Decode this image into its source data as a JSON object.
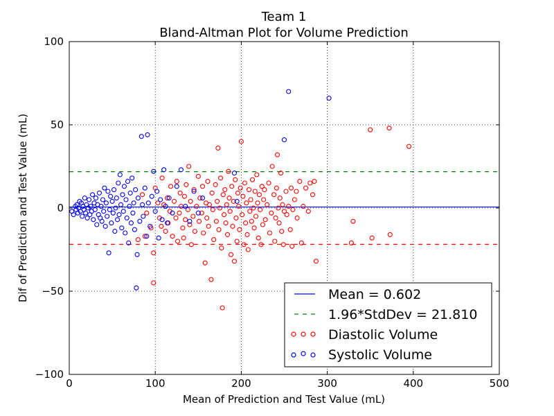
{
  "chart_data": {
    "type": "scatter",
    "title": "Team 1",
    "subtitle": "Bland-Altman Plot for Volume Prediction",
    "xlabel": "Mean of Prediction and Test Value (mL)",
    "ylabel": "Dif of Prediction and Test Value (mL)",
    "xlim": [
      0,
      500
    ],
    "ylim": [
      -100,
      100
    ],
    "x_ticks": [
      0,
      100,
      200,
      300,
      400,
      500
    ],
    "y_ticks": [
      -100,
      -50,
      0,
      50,
      100
    ],
    "x_tick_labels": [
      "0",
      "100",
      "200",
      "300",
      "400",
      "500"
    ],
    "y_tick_labels": [
      "−100",
      "−50",
      "0",
      "50",
      "100"
    ],
    "grid": true,
    "grid_style": "dotted",
    "legend_position": "lower-right",
    "mean": 0.602,
    "limit": 21.81,
    "reference_lines": [
      {
        "name": "Mean = 0.602",
        "type": "solid",
        "color": "#0000ff",
        "values": [
          0.602
        ]
      },
      {
        "name": "1.96*StdDev = 21.810",
        "type": "dashed",
        "color": "#008000",
        "values": [
          21.81
        ]
      },
      {
        "type": "dashed",
        "color": "#ff0000",
        "values": [
          -21.81
        ]
      }
    ],
    "series": [
      {
        "name": "Diastolic Volume",
        "color": "#ff0000",
        "marker": "open-circle",
        "points": [
          [
            80,
            -19
          ],
          [
            85,
            8
          ],
          [
            88,
            -17
          ],
          [
            90,
            -3
          ],
          [
            95,
            -12
          ],
          [
            98,
            -27
          ],
          [
            98,
            -45
          ],
          [
            100,
            12
          ],
          [
            103,
            3
          ],
          [
            105,
            -6
          ],
          [
            107,
            -11
          ],
          [
            108,
            18
          ],
          [
            110,
            2
          ],
          [
            112,
            -14
          ],
          [
            114,
            6
          ],
          [
            115,
            -9
          ],
          [
            117,
            -2
          ],
          [
            118,
            13
          ],
          [
            120,
            -17
          ],
          [
            122,
            4
          ],
          [
            124,
            -6
          ],
          [
            125,
            16
          ],
          [
            126,
            -20
          ],
          [
            128,
            -3
          ],
          [
            129,
            9
          ],
          [
            130,
            1
          ],
          [
            132,
            -12
          ],
          [
            133,
            -18
          ],
          [
            134,
            7
          ],
          [
            135,
            -7
          ],
          [
            136,
            14
          ],
          [
            138,
            -1
          ],
          [
            139,
            25
          ],
          [
            140,
            -10
          ],
          [
            141,
            4
          ],
          [
            142,
            -22
          ],
          [
            144,
            -5
          ],
          [
            145,
            11
          ],
          [
            146,
            -14
          ],
          [
            148,
            1
          ],
          [
            150,
            19
          ],
          [
            151,
            -8
          ],
          [
            152,
            6
          ],
          [
            154,
            -3
          ],
          [
            155,
            13
          ],
          [
            156,
            -15
          ],
          [
            158,
            -33
          ],
          [
            159,
            3
          ],
          [
            160,
            -6
          ],
          [
            161,
            16
          ],
          [
            162,
            -11
          ],
          [
            163,
            2
          ],
          [
            165,
            -43
          ],
          [
            166,
            9
          ],
          [
            167,
            -1
          ],
          [
            168,
            -19
          ],
          [
            170,
            14
          ],
          [
            171,
            -8
          ],
          [
            172,
            4
          ],
          [
            173,
            36
          ],
          [
            174,
            -13
          ],
          [
            175,
            0
          ],
          [
            176,
            18
          ],
          [
            177,
            -24
          ],
          [
            178,
            -60
          ],
          [
            179,
            8
          ],
          [
            180,
            -4
          ],
          [
            181,
            11
          ],
          [
            182,
            -9
          ],
          [
            183,
            2
          ],
          [
            184,
            -16
          ],
          [
            185,
            22
          ],
          [
            186,
            6
          ],
          [
            187,
            -2
          ],
          [
            188,
            -28
          ],
          [
            189,
            13
          ],
          [
            190,
            -11
          ],
          [
            191,
            4
          ],
          [
            192,
            -32
          ],
          [
            193,
            17
          ],
          [
            194,
            -6
          ],
          [
            195,
            -20
          ],
          [
            196,
            9
          ],
          [
            197,
            1
          ],
          [
            198,
            -13
          ],
          [
            199,
            12
          ],
          [
            200,
            40
          ],
          [
            201,
            -4
          ],
          [
            202,
            7
          ],
          [
            203,
            -22
          ],
          [
            204,
            15
          ],
          [
            205,
            -9
          ],
          [
            206,
            3
          ],
          [
            207,
            -16
          ],
          [
            208,
            -25
          ],
          [
            209,
            11
          ],
          [
            210,
            -2
          ],
          [
            211,
            5
          ],
          [
            212,
            -8
          ],
          [
            213,
            17
          ],
          [
            214,
            0
          ],
          [
            215,
            -12
          ],
          [
            216,
            10
          ],
          [
            217,
            -5
          ],
          [
            218,
            20
          ],
          [
            219,
            3
          ],
          [
            220,
            -18
          ],
          [
            221,
            8
          ],
          [
            222,
            -1
          ],
          [
            223,
            -22
          ],
          [
            224,
            13
          ],
          [
            225,
            -10
          ],
          [
            226,
            5
          ],
          [
            227,
            11
          ],
          [
            228,
            -7
          ],
          [
            230,
            2
          ],
          [
            232,
            15
          ],
          [
            233,
            -15
          ],
          [
            235,
            -3
          ],
          [
            236,
            25
          ],
          [
            238,
            8
          ],
          [
            239,
            -20
          ],
          [
            240,
            -6
          ],
          [
            241,
            12
          ],
          [
            242,
            32
          ],
          [
            243,
            0
          ],
          [
            244,
            -9
          ],
          [
            245,
            6
          ],
          [
            246,
            21
          ],
          [
            247,
            -14
          ],
          [
            248,
            2
          ],
          [
            249,
            -22
          ],
          [
            250,
            -2
          ],
          [
            252,
            10
          ],
          [
            253,
            -4
          ],
          [
            255,
            1
          ],
          [
            257,
            -13
          ],
          [
            258,
            12
          ],
          [
            259,
            -23
          ],
          [
            260,
            -1
          ],
          [
            262,
            5
          ],
          [
            264,
            10
          ],
          [
            265,
            -6
          ],
          [
            268,
            16
          ],
          [
            270,
            -21
          ],
          [
            272,
            1
          ],
          [
            275,
            12
          ],
          [
            278,
            -2
          ],
          [
            280,
            15
          ],
          [
            283,
            8
          ],
          [
            285,
            16
          ],
          [
            287,
            -32
          ],
          [
            328,
            -21
          ],
          [
            330,
            -8
          ],
          [
            350,
            47
          ],
          [
            352,
            -18
          ],
          [
            372,
            48
          ],
          [
            373,
            -16
          ],
          [
            395,
            37
          ]
        ]
      },
      {
        "name": "Systolic Volume",
        "color": "#0000ff",
        "marker": "open-circle",
        "points": [
          [
            3,
            -2
          ],
          [
            5,
            -4
          ],
          [
            7,
            1
          ],
          [
            8,
            -1
          ],
          [
            9,
            2
          ],
          [
            10,
            -3
          ],
          [
            11,
            0
          ],
          [
            12,
            4
          ],
          [
            13,
            -2
          ],
          [
            14,
            3
          ],
          [
            15,
            -5
          ],
          [
            16,
            1
          ],
          [
            17,
            -1
          ],
          [
            18,
            6
          ],
          [
            19,
            -3
          ],
          [
            20,
            2
          ],
          [
            21,
            -6
          ],
          [
            22,
            0
          ],
          [
            23,
            5
          ],
          [
            24,
            -4
          ],
          [
            25,
            1
          ],
          [
            26,
            -2
          ],
          [
            27,
            8
          ],
          [
            28,
            -7
          ],
          [
            29,
            3
          ],
          [
            30,
            -1
          ],
          [
            31,
            6
          ],
          [
            32,
            -10
          ],
          [
            33,
            2
          ],
          [
            34,
            -4
          ],
          [
            35,
            9
          ],
          [
            36,
            -6
          ],
          [
            37,
            1
          ],
          [
            38,
            -8
          ],
          [
            39,
            5
          ],
          [
            40,
            -2
          ],
          [
            41,
            12
          ],
          [
            42,
            -11
          ],
          [
            43,
            3
          ],
          [
            44,
            -5
          ],
          [
            45,
            10
          ],
          [
            46,
            -27
          ],
          [
            47,
            -1
          ],
          [
            48,
            7
          ],
          [
            49,
            -9
          ],
          [
            50,
            4
          ],
          [
            51,
            -3
          ],
          [
            52,
            11
          ],
          [
            53,
            -14
          ],
          [
            54,
            0
          ],
          [
            55,
            6
          ],
          [
            56,
            -7
          ],
          [
            57,
            15
          ],
          [
            58,
            -4
          ],
          [
            59,
            20
          ],
          [
            60,
            2
          ],
          [
            61,
            -12
          ],
          [
            62,
            8
          ],
          [
            63,
            -2
          ],
          [
            64,
            13
          ],
          [
            65,
            -15
          ],
          [
            66,
            5
          ],
          [
            67,
            -6
          ],
          [
            68,
            16
          ],
          [
            69,
            -21
          ],
          [
            70,
            1
          ],
          [
            71,
            9
          ],
          [
            72,
            -9
          ],
          [
            73,
            18
          ],
          [
            74,
            -3
          ],
          [
            75,
            3
          ],
          [
            76,
            -13
          ],
          [
            77,
            11
          ],
          [
            78,
            -48
          ],
          [
            79,
            -28
          ],
          [
            80,
            6
          ],
          [
            82,
            -8
          ],
          [
            84,
            43
          ],
          [
            85,
            2
          ],
          [
            86,
            -5
          ],
          [
            88,
            12
          ],
          [
            90,
            -17
          ],
          [
            91,
            44
          ],
          [
            92,
            3
          ],
          [
            94,
            -11
          ],
          [
            96,
            7
          ],
          [
            98,
            22
          ],
          [
            100,
            -2
          ],
          [
            102,
            10
          ],
          [
            104,
            -18
          ],
          [
            106,
            5
          ],
          [
            108,
            -7
          ],
          [
            110,
            23
          ],
          [
            112,
            1
          ],
          [
            114,
            -9
          ],
          [
            116,
            6
          ],
          [
            120,
            -3
          ],
          [
            125,
            13
          ],
          [
            130,
            23
          ],
          [
            135,
            1
          ],
          [
            140,
            -8
          ],
          [
            145,
            10
          ],
          [
            150,
            -3
          ],
          [
            155,
            6
          ],
          [
            192,
            21
          ],
          [
            195,
            4
          ],
          [
            250,
            41
          ],
          [
            255,
            70
          ],
          [
            302,
            66
          ]
        ]
      }
    ]
  }
}
